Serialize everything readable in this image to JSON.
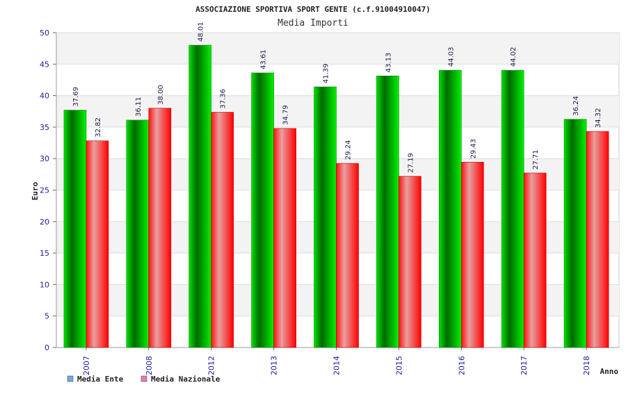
{
  "chart_data": {
    "type": "bar",
    "title": "ASSOCIAZIONE SPORTIVA SPORT GENTE (c.f.91004910047)",
    "subtitle": "Media Importi",
    "xlabel": "Anno",
    "ylabel": "Euro",
    "ylim": [
      0,
      50
    ],
    "yticks": [
      0,
      5,
      10,
      15,
      20,
      25,
      30,
      35,
      40,
      45,
      50
    ],
    "categories": [
      "2007",
      "2008",
      "2012",
      "2013",
      "2014",
      "2015",
      "2016",
      "2017",
      "2018"
    ],
    "series": [
      {
        "name": "Media Ente",
        "color": "#00c000",
        "legend_color": "#6fa8e8",
        "values": [
          37.69,
          36.11,
          48.01,
          43.61,
          41.39,
          43.13,
          44.03,
          44.02,
          36.24
        ],
        "labels": [
          "37.69",
          "36.11",
          "48.01",
          "43.61",
          "41.39",
          "43.13",
          "44.03",
          "44.02",
          "36.24"
        ]
      },
      {
        "name": "Media Nazionale",
        "color": "#ff2020",
        "legend_color": "#e080b0",
        "values": [
          32.82,
          38.0,
          37.36,
          34.79,
          29.24,
          27.19,
          29.43,
          27.71,
          34.32
        ],
        "labels": [
          "32.82",
          "38.00",
          "37.36",
          "34.79",
          "29.24",
          "27.19",
          "29.43",
          "27.71",
          "34.32"
        ]
      }
    ],
    "grid": true,
    "legend_position": "bottom-left"
  }
}
